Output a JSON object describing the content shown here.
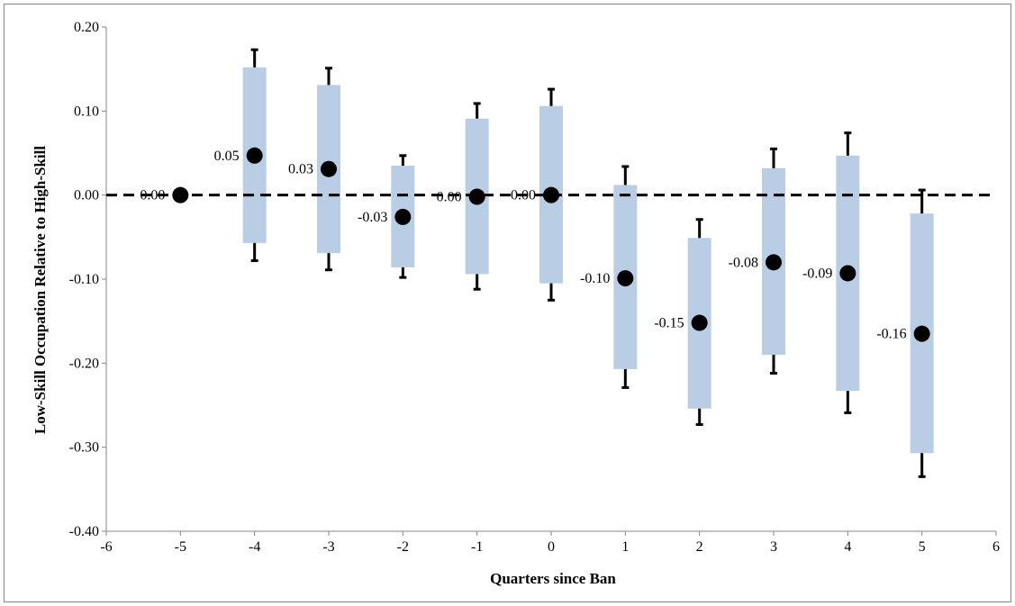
{
  "chart_data": {
    "type": "scatter",
    "xlabel": "Quarters since Ban",
    "ylabel": "Low-Skill Occupation Relative to High-Skill",
    "xlim": [
      -6,
      6
    ],
    "ylim": [
      -0.4,
      0.2
    ],
    "x_ticks": [
      "-6",
      "-5",
      "-4",
      "-3",
      "-2",
      "-1",
      "0",
      "1",
      "2",
      "3",
      "4",
      "5",
      "6"
    ],
    "y_ticks": [
      "0.20",
      "0.10",
      "0.00",
      "-0.10",
      "-0.20",
      "-0.30",
      "-0.40"
    ],
    "reference_line": {
      "y": 0,
      "style": "dashed"
    },
    "colors": {
      "box": "#b9cde5",
      "point": "#000000",
      "whisker": "#000000",
      "reference": "#000000",
      "frame": "#868686"
    },
    "points": [
      {
        "x": -5,
        "estimate": 0.0,
        "label": "0.00",
        "box_low": 0.0,
        "box_high": 0.0,
        "ci_low": 0.0,
        "ci_high": 0.0
      },
      {
        "x": -4,
        "estimate": 0.047,
        "label": "0.05",
        "box_low": -0.057,
        "box_high": 0.152,
        "ci_low": -0.078,
        "ci_high": 0.173
      },
      {
        "x": -3,
        "estimate": 0.031,
        "label": "0.03",
        "box_low": -0.069,
        "box_high": 0.131,
        "ci_low": -0.089,
        "ci_high": 0.151
      },
      {
        "x": -2,
        "estimate": -0.026,
        "label": "-0.03",
        "box_low": -0.086,
        "box_high": 0.035,
        "ci_low": -0.098,
        "ci_high": 0.047
      },
      {
        "x": -1,
        "estimate": -0.002,
        "label": "0.00",
        "box_low": -0.094,
        "box_high": 0.091,
        "ci_low": -0.112,
        "ci_high": 0.109
      },
      {
        "x": 0,
        "estimate": 0.0,
        "label": "0.00",
        "box_low": -0.105,
        "box_high": 0.106,
        "ci_low": -0.125,
        "ci_high": 0.126
      },
      {
        "x": 1,
        "estimate": -0.099,
        "label": "-0.10",
        "box_low": -0.207,
        "box_high": 0.012,
        "ci_low": -0.229,
        "ci_high": 0.034
      },
      {
        "x": 2,
        "estimate": -0.152,
        "label": "-0.15",
        "box_low": -0.254,
        "box_high": -0.051,
        "ci_low": -0.273,
        "ci_high": -0.029
      },
      {
        "x": 3,
        "estimate": -0.08,
        "label": "-0.08",
        "box_low": -0.19,
        "box_high": 0.032,
        "ci_low": -0.212,
        "ci_high": 0.055
      },
      {
        "x": 4,
        "estimate": -0.093,
        "label": "-0.09",
        "box_low": -0.233,
        "box_high": 0.047,
        "ci_low": -0.259,
        "ci_high": 0.074
      },
      {
        "x": 5,
        "estimate": -0.165,
        "label": "-0.16",
        "box_low": -0.307,
        "box_high": -0.022,
        "ci_low": -0.335,
        "ci_high": 0.006
      }
    ]
  }
}
